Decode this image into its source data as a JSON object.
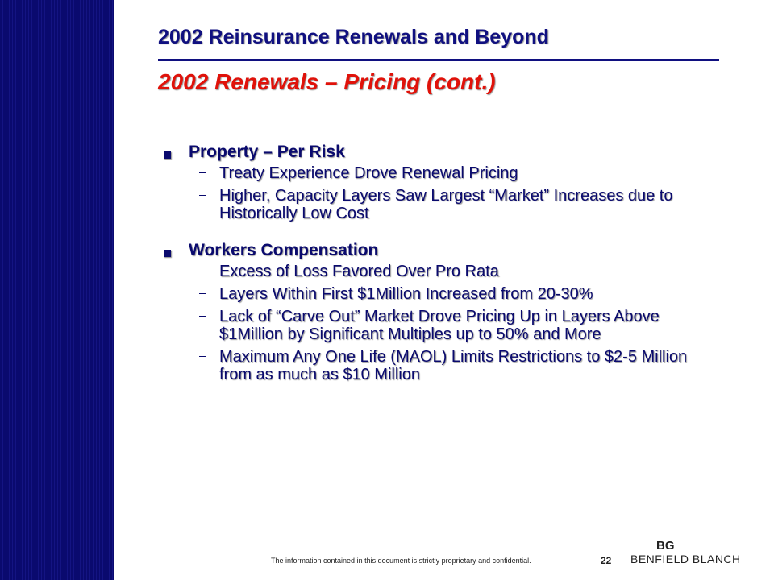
{
  "slide": {
    "title": "2002 Reinsurance Renewals and Beyond",
    "subtitle": "2002 Renewals – Pricing (cont.)",
    "sections": [
      {
        "heading": "Property – Per Risk",
        "items": [
          "Treaty Experience Drove Renewal Pricing",
          "Higher, Capacity Layers Saw Largest “Market” Increases due to Historically Low Cost"
        ]
      },
      {
        "heading": "Workers Compensation",
        "items": [
          "Excess of Loss Favored Over Pro Rata",
          "Layers Within First $1Million Increased from 20-30%",
          "Lack of “Carve Out” Market Drove Pricing Up in Layers Above $1Million by Significant Multiples up to 50% and More",
          "Maximum Any One Life (MAOL) Limits Restrictions to $2-5 Million from as much as $10 Million"
        ]
      }
    ]
  },
  "footer": {
    "confidentiality": "The information contained in this document is strictly proprietary and confidential.",
    "page_number": "22",
    "logo_text": "BENFIELD BLANCH",
    "logo_mark": "BG"
  },
  "colors": {
    "sidebar": "#0a0a6e",
    "title": "#101080",
    "subtitle": "#e0120a",
    "body_text": "#0a0a6e"
  }
}
